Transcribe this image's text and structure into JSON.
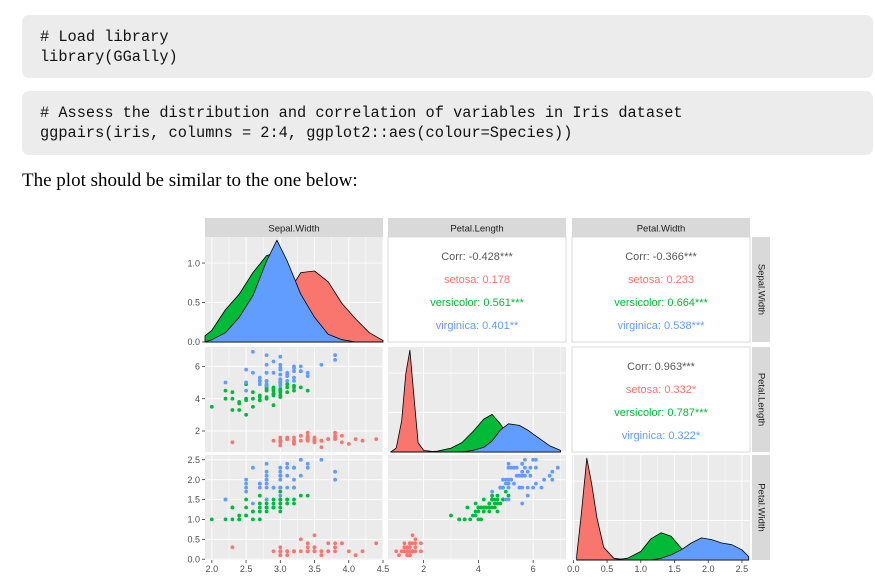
{
  "code_blocks": [
    {
      "lines": [
        "# Load library",
        "library(GGally)"
      ]
    },
    {
      "lines": [
        "# Assess the distribution and correlation of variables in Iris dataset",
        "ggpairs(iris, columns = 2:4, ggplot2::aes(colour=Species))"
      ]
    }
  ],
  "prose": "The plot should be similar to the one below:",
  "colors": {
    "setosa": "#F8766D",
    "versicolor": "#00BA38",
    "virginica": "#619CFF",
    "panel_bg": "#EBEBEB",
    "strip_bg": "#D9D9D9",
    "grid": "#FFFFFF",
    "text_dark": "#4D4D4D"
  },
  "chart_data": {
    "type": "scatter",
    "title": "",
    "variables": [
      "Sepal.Width",
      "Petal.Length",
      "Petal.Width"
    ],
    "series": [
      {
        "name": "setosa",
        "color": "#F8766D"
      },
      {
        "name": "versicolor",
        "color": "#00BA38"
      },
      {
        "name": "virginica",
        "color": "#619CFF"
      }
    ],
    "axis_ticks": {
      "Sepal.Width": {
        "range": [
          1.9,
          4.5
        ],
        "ticks": [
          "2.0",
          "2.5",
          "3.0",
          "3.5",
          "4.0",
          "4.5"
        ]
      },
      "Petal.Length": {
        "range": [
          0.7,
          7.2
        ],
        "ticks": [
          "2",
          "4",
          "6"
        ]
      },
      "Petal.Width": {
        "range": [
          -0.02,
          2.62
        ],
        "ticks": [
          "0.0",
          "0.5",
          "1.0",
          "1.5",
          "2.0",
          "2.5"
        ]
      }
    },
    "density_y_ticks": [
      "0.0",
      "0.5",
      "1.0"
    ],
    "density_y_range": [
      0,
      1.33
    ],
    "correlations": [
      {
        "pair": [
          "Sepal.Width",
          "Petal.Length"
        ],
        "overall": "Corr: -0.428***",
        "groups": [
          "setosa: 0.178",
          "versicolor: 0.561***",
          "virginica: 0.401**"
        ]
      },
      {
        "pair": [
          "Sepal.Width",
          "Petal.Width"
        ],
        "overall": "Corr: -0.366***",
        "groups": [
          "setosa: 0.233",
          "versicolor: 0.664***",
          "virginica: 0.538***"
        ]
      },
      {
        "pair": [
          "Petal.Length",
          "Petal.Width"
        ],
        "overall": "Corr: 0.963***",
        "groups": [
          "setosa: 0.332*",
          "versicolor: 0.787***",
          "virginica: 0.322*"
        ]
      }
    ],
    "densities": {
      "Sepal.Width": {
        "x": [
          1.9,
          2.0,
          2.2,
          2.4,
          2.6,
          2.8,
          2.95,
          3.1,
          3.3,
          3.5,
          3.7,
          3.9,
          4.1,
          4.3,
          4.5
        ],
        "setosa": [
          0,
          0,
          0.02,
          0.04,
          0.06,
          0.12,
          0.3,
          0.62,
          0.9,
          0.92,
          0.78,
          0.5,
          0.3,
          0.12,
          0.02
        ],
        "versicolor": [
          0.08,
          0.15,
          0.42,
          0.62,
          0.9,
          1.12,
          1.16,
          0.9,
          0.42,
          0.12,
          0.03,
          0,
          0,
          0,
          0
        ],
        "virginica": [
          0,
          0.03,
          0.12,
          0.32,
          0.6,
          1.05,
          1.32,
          1.05,
          0.62,
          0.32,
          0.1,
          0.03,
          0,
          0,
          0
        ]
      },
      "Petal.Length": {
        "x": [
          0.8,
          1.0,
          1.2,
          1.35,
          1.5,
          1.65,
          1.8,
          2.0,
          2.5,
          3.0,
          3.4,
          3.8,
          4.2,
          4.5,
          4.8,
          5.1,
          5.5,
          5.8,
          6.2,
          6.6,
          7.0
        ],
        "setosa": [
          0,
          0.05,
          0.4,
          1.0,
          1.3,
          0.7,
          0.12,
          0.02,
          0,
          0,
          0,
          0,
          0,
          0,
          0,
          0,
          0,
          0,
          0,
          0,
          0
        ],
        "versicolor": [
          0,
          0,
          0,
          0,
          0,
          0,
          0,
          0,
          0.01,
          0.05,
          0.12,
          0.26,
          0.42,
          0.48,
          0.36,
          0.2,
          0.06,
          0.02,
          0,
          0,
          0
        ],
        "virginica": [
          0,
          0,
          0,
          0,
          0,
          0,
          0,
          0,
          0,
          0,
          0,
          0.02,
          0.06,
          0.14,
          0.28,
          0.36,
          0.34,
          0.28,
          0.18,
          0.08,
          0.02
        ]
      },
      "Petal.Width": {
        "x": [
          0.05,
          0.12,
          0.2,
          0.27,
          0.35,
          0.45,
          0.6,
          0.8,
          1.0,
          1.15,
          1.3,
          1.45,
          1.6,
          1.75,
          1.9,
          2.05,
          2.2,
          2.35,
          2.5,
          2.6
        ],
        "setosa": [
          0.05,
          0.55,
          1.2,
          0.9,
          0.5,
          0.15,
          0.02,
          0,
          0,
          0,
          0,
          0,
          0,
          0,
          0,
          0,
          0,
          0,
          0,
          0
        ],
        "versicolor": [
          0,
          0,
          0,
          0,
          0,
          0,
          0,
          0.02,
          0.1,
          0.25,
          0.32,
          0.28,
          0.14,
          0.04,
          0.01,
          0,
          0,
          0,
          0,
          0
        ],
        "virginica": [
          0,
          0,
          0,
          0,
          0,
          0,
          0,
          0,
          0,
          0,
          0.02,
          0.06,
          0.12,
          0.2,
          0.26,
          0.24,
          0.2,
          0.18,
          0.12,
          0.04
        ]
      }
    },
    "points": {
      "setosa": [
        [
          3.5,
          1.4,
          0.2
        ],
        [
          3.0,
          1.4,
          0.2
        ],
        [
          3.2,
          1.3,
          0.2
        ],
        [
          3.1,
          1.5,
          0.2
        ],
        [
          3.6,
          1.4,
          0.2
        ],
        [
          3.9,
          1.7,
          0.4
        ],
        [
          3.4,
          1.4,
          0.3
        ],
        [
          3.4,
          1.5,
          0.2
        ],
        [
          2.9,
          1.4,
          0.2
        ],
        [
          3.1,
          1.5,
          0.1
        ],
        [
          3.7,
          1.5,
          0.2
        ],
        [
          3.4,
          1.6,
          0.2
        ],
        [
          3.0,
          1.4,
          0.1
        ],
        [
          3.0,
          1.1,
          0.1
        ],
        [
          4.0,
          1.2,
          0.2
        ],
        [
          4.4,
          1.5,
          0.4
        ],
        [
          3.9,
          1.3,
          0.4
        ],
        [
          3.5,
          1.4,
          0.3
        ],
        [
          3.8,
          1.7,
          0.3
        ],
        [
          3.8,
          1.5,
          0.3
        ],
        [
          3.4,
          1.7,
          0.2
        ],
        [
          3.7,
          1.5,
          0.4
        ],
        [
          3.6,
          1.0,
          0.2
        ],
        [
          3.3,
          1.7,
          0.5
        ],
        [
          3.4,
          1.9,
          0.2
        ],
        [
          3.0,
          1.6,
          0.2
        ],
        [
          3.4,
          1.6,
          0.4
        ],
        [
          3.5,
          1.5,
          0.2
        ],
        [
          3.4,
          1.4,
          0.2
        ],
        [
          3.2,
          1.6,
          0.2
        ],
        [
          3.1,
          1.6,
          0.2
        ],
        [
          3.4,
          1.5,
          0.4
        ],
        [
          4.1,
          1.5,
          0.1
        ],
        [
          4.2,
          1.4,
          0.2
        ],
        [
          3.1,
          1.5,
          0.2
        ],
        [
          3.2,
          1.2,
          0.2
        ],
        [
          3.5,
          1.3,
          0.2
        ],
        [
          3.6,
          1.4,
          0.1
        ],
        [
          3.0,
          1.3,
          0.2
        ],
        [
          3.4,
          1.5,
          0.2
        ],
        [
          3.5,
          1.3,
          0.3
        ],
        [
          2.3,
          1.3,
          0.3
        ],
        [
          3.2,
          1.3,
          0.2
        ],
        [
          3.5,
          1.6,
          0.6
        ],
        [
          3.8,
          1.9,
          0.4
        ],
        [
          3.0,
          1.4,
          0.3
        ],
        [
          3.8,
          1.6,
          0.2
        ],
        [
          3.2,
          1.4,
          0.2
        ],
        [
          3.7,
          1.5,
          0.2
        ],
        [
          3.3,
          1.4,
          0.2
        ]
      ],
      "versicolor": [
        [
          3.2,
          4.7,
          1.4
        ],
        [
          3.2,
          4.5,
          1.5
        ],
        [
          3.1,
          4.9,
          1.5
        ],
        [
          2.3,
          4.0,
          1.3
        ],
        [
          2.8,
          4.6,
          1.5
        ],
        [
          2.8,
          4.5,
          1.3
        ],
        [
          3.3,
          4.7,
          1.6
        ],
        [
          2.4,
          3.3,
          1.0
        ],
        [
          2.9,
          4.6,
          1.3
        ],
        [
          2.7,
          3.9,
          1.4
        ],
        [
          2.0,
          3.5,
          1.0
        ],
        [
          3.0,
          4.2,
          1.5
        ],
        [
          2.2,
          4.0,
          1.0
        ],
        [
          2.9,
          4.7,
          1.4
        ],
        [
          2.9,
          3.6,
          1.3
        ],
        [
          3.1,
          4.4,
          1.4
        ],
        [
          3.0,
          4.5,
          1.5
        ],
        [
          2.7,
          4.1,
          1.0
        ],
        [
          2.2,
          4.5,
          1.5
        ],
        [
          2.5,
          3.9,
          1.1
        ],
        [
          3.2,
          4.8,
          1.8
        ],
        [
          2.8,
          4.0,
          1.3
        ],
        [
          2.5,
          4.9,
          1.5
        ],
        [
          2.8,
          4.7,
          1.2
        ],
        [
          2.9,
          4.3,
          1.3
        ],
        [
          3.0,
          4.4,
          1.4
        ],
        [
          2.8,
          4.8,
          1.4
        ],
        [
          3.0,
          5.0,
          1.7
        ],
        [
          2.9,
          4.5,
          1.5
        ],
        [
          2.6,
          3.5,
          1.0
        ],
        [
          2.4,
          3.8,
          1.1
        ],
        [
          2.4,
          3.7,
          1.0
        ],
        [
          2.7,
          3.9,
          1.2
        ],
        [
          2.7,
          5.1,
          1.6
        ],
        [
          3.0,
          4.5,
          1.5
        ],
        [
          3.4,
          4.5,
          1.6
        ],
        [
          3.1,
          4.7,
          1.5
        ],
        [
          2.3,
          4.4,
          1.3
        ],
        [
          3.0,
          4.1,
          1.3
        ],
        [
          2.5,
          4.0,
          1.3
        ],
        [
          2.6,
          4.4,
          1.2
        ],
        [
          3.0,
          4.6,
          1.4
        ],
        [
          2.6,
          4.0,
          1.2
        ],
        [
          2.3,
          3.3,
          1.0
        ],
        [
          2.7,
          4.2,
          1.3
        ],
        [
          3.0,
          4.2,
          1.2
        ],
        [
          2.9,
          4.2,
          1.3
        ],
        [
          2.9,
          4.3,
          1.3
        ],
        [
          2.5,
          3.0,
          1.1
        ],
        [
          2.8,
          4.1,
          1.3
        ]
      ],
      "virginica": [
        [
          3.3,
          6.0,
          2.5
        ],
        [
          2.7,
          5.1,
          1.9
        ],
        [
          3.0,
          5.9,
          2.1
        ],
        [
          2.9,
          5.6,
          1.8
        ],
        [
          3.0,
          5.8,
          2.2
        ],
        [
          3.0,
          6.6,
          2.1
        ],
        [
          2.5,
          4.5,
          1.7
        ],
        [
          2.9,
          6.3,
          1.8
        ],
        [
          2.5,
          5.8,
          1.8
        ],
        [
          3.6,
          6.1,
          2.5
        ],
        [
          3.2,
          5.1,
          2.0
        ],
        [
          2.7,
          5.3,
          1.9
        ],
        [
          3.0,
          5.5,
          2.1
        ],
        [
          2.5,
          5.0,
          2.0
        ],
        [
          2.8,
          5.1,
          2.4
        ],
        [
          3.2,
          5.3,
          2.3
        ],
        [
          3.0,
          5.5,
          1.8
        ],
        [
          3.8,
          6.7,
          2.2
        ],
        [
          2.6,
          6.9,
          2.3
        ],
        [
          2.2,
          5.0,
          1.5
        ],
        [
          3.2,
          5.7,
          2.3
        ],
        [
          2.8,
          4.9,
          2.0
        ],
        [
          2.8,
          6.7,
          2.0
        ],
        [
          2.7,
          4.9,
          1.8
        ],
        [
          3.3,
          5.7,
          2.1
        ],
        [
          3.2,
          6.0,
          1.8
        ],
        [
          2.8,
          4.8,
          1.8
        ],
        [
          3.0,
          4.9,
          1.8
        ],
        [
          2.8,
          5.6,
          2.1
        ],
        [
          3.0,
          5.8,
          1.6
        ],
        [
          2.8,
          6.1,
          1.9
        ],
        [
          3.8,
          6.4,
          2.0
        ],
        [
          2.8,
          5.6,
          2.2
        ],
        [
          2.8,
          5.1,
          1.5
        ],
        [
          2.6,
          5.6,
          1.4
        ],
        [
          3.0,
          6.1,
          2.3
        ],
        [
          3.4,
          5.6,
          2.4
        ],
        [
          3.1,
          5.5,
          1.8
        ],
        [
          3.0,
          4.8,
          1.8
        ],
        [
          3.1,
          5.4,
          2.1
        ],
        [
          3.1,
          5.6,
          2.4
        ],
        [
          3.1,
          5.1,
          2.3
        ],
        [
          2.7,
          5.1,
          1.9
        ],
        [
          3.2,
          5.9,
          2.3
        ],
        [
          3.3,
          5.7,
          2.5
        ],
        [
          3.0,
          5.2,
          2.3
        ],
        [
          2.5,
          5.0,
          1.9
        ],
        [
          3.0,
          5.2,
          2.0
        ],
        [
          3.4,
          5.4,
          2.3
        ],
        [
          3.0,
          5.1,
          1.8
        ]
      ]
    }
  }
}
